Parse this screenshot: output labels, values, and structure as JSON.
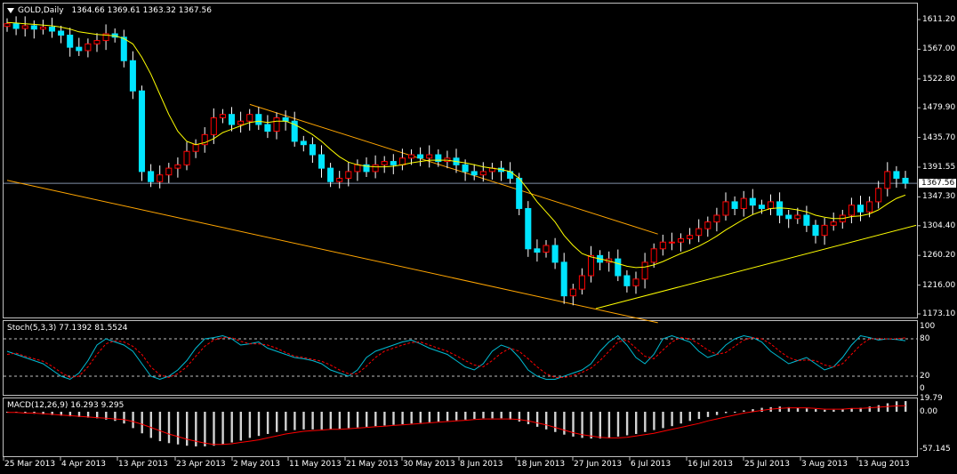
{
  "colors": {
    "background": "#000000",
    "frame": "#c0c0c0",
    "bull_candle": "#ff0000",
    "bear_candle": "#00e5ff",
    "ma_line": "#ffff00",
    "channel_line": "#ffa500",
    "trend_line": "#ffff00",
    "price_line": "#7f8fa6",
    "stoch_main": "#00bcd4",
    "stoch_signal": "#ff0000",
    "macd_hist": "#d3d3d3",
    "macd_signal": "#ff0000"
  },
  "main_panel": {
    "arrow_icon": "triangle-down-icon",
    "symbol": "GOLD,Daily",
    "ohlc": "1364.66 1369.61 1363.32 1367.56",
    "current_price": "1367.56"
  },
  "stoch_panel": {
    "title": "Stoch(5,3,3) 77.1392 81.5524"
  },
  "macd_panel": {
    "title": "MACD(12,26,9) 16.293 9.295"
  },
  "chart_data": [
    {
      "type": "candlestick",
      "title": "GOLD,Daily",
      "ylim": [
        1150,
        1625
      ],
      "yticks": [
        "1611.20",
        "1567.00",
        "1522.80",
        "1479.90",
        "1435.70",
        "1391.55",
        "1347.30",
        "1304.40",
        "1260.20",
        "1216.00",
        "1173.10"
      ],
      "xticks": [
        "25 Mar 2013",
        "4 Apr 2013",
        "13 Apr 2013",
        "23 Apr 2013",
        "2 May 2013",
        "11 May 2013",
        "21 May 2013",
        "30 May 2013",
        "8 Jun 2013",
        "18 Jun 2013",
        "27 Jun 2013",
        "6 Jul 2013",
        "16 Jul 2013",
        "25 Jul 2013",
        "3 Aug 2013",
        "13 Aug 2013"
      ],
      "close": [
        1605,
        1598,
        1602,
        1597,
        1600,
        1594,
        1588,
        1570,
        1565,
        1575,
        1580,
        1590,
        1585,
        1550,
        1505,
        1385,
        1370,
        1380,
        1390,
        1395,
        1415,
        1425,
        1440,
        1465,
        1470,
        1455,
        1460,
        1470,
        1455,
        1445,
        1465,
        1460,
        1430,
        1425,
        1410,
        1390,
        1370,
        1375,
        1385,
        1395,
        1385,
        1395,
        1400,
        1395,
        1405,
        1410,
        1405,
        1410,
        1400,
        1405,
        1395,
        1385,
        1380,
        1385,
        1390,
        1385,
        1375,
        1330,
        1270,
        1265,
        1275,
        1250,
        1200,
        1210,
        1230,
        1260,
        1250,
        1255,
        1230,
        1215,
        1225,
        1250,
        1270,
        1280,
        1280,
        1285,
        1290,
        1300,
        1310,
        1320,
        1340,
        1330,
        1345,
        1335,
        1330,
        1340,
        1320,
        1315,
        1320,
        1305,
        1290,
        1305,
        1310,
        1320,
        1335,
        1325,
        1340,
        1360,
        1385,
        1375,
        1367.56
      ],
      "ma": [
        1607,
        1606,
        1605,
        1604,
        1603,
        1602,
        1600,
        1597,
        1593,
        1591,
        1589,
        1588,
        1587,
        1583,
        1575,
        1555,
        1530,
        1500,
        1470,
        1445,
        1430,
        1425,
        1428,
        1434,
        1443,
        1448,
        1453,
        1458,
        1460,
        1458,
        1460,
        1460,
        1455,
        1448,
        1440,
        1430,
        1418,
        1407,
        1399,
        1395,
        1393,
        1392,
        1392,
        1393,
        1395,
        1398,
        1400,
        1402,
        1402,
        1402,
        1400,
        1398,
        1395,
        1392,
        1390,
        1388,
        1385,
        1375,
        1358,
        1340,
        1325,
        1310,
        1290,
        1275,
        1263,
        1258,
        1255,
        1252,
        1248,
        1244,
        1242,
        1243,
        1246,
        1251,
        1257,
        1263,
        1268,
        1274,
        1281,
        1289,
        1298,
        1306,
        1314,
        1321,
        1326,
        1330,
        1331,
        1330,
        1328,
        1325,
        1320,
        1317,
        1315,
        1315,
        1318,
        1319,
        1322,
        1328,
        1337,
        1345,
        1350
      ],
      "channel_upper": [
        {
          "bar": 47,
          "price": 1485
        },
        {
          "bar": 126,
          "price": 1292
        }
      ],
      "channel_lower": [
        {
          "bar": 0,
          "price": 1372
        },
        {
          "bar": 126,
          "price": 1160
        }
      ],
      "trend_line": [
        {
          "bar": 114,
          "price": 1181
        },
        {
          "bar": 176,
          "price": 1305
        }
      ]
    },
    {
      "type": "line",
      "title": "Stoch(5,3,3) 77.1392 81.5524",
      "ylim": [
        0,
        100
      ],
      "levels": [
        20,
        80
      ],
      "yticks": [
        "100",
        "80",
        "20",
        "0"
      ],
      "series": [
        {
          "name": "main",
          "values": [
            60,
            55,
            50,
            45,
            40,
            30,
            20,
            15,
            25,
            45,
            70,
            80,
            75,
            70,
            60,
            40,
            20,
            15,
            20,
            30,
            45,
            65,
            80,
            82,
            85,
            80,
            70,
            72,
            75,
            65,
            60,
            55,
            50,
            48,
            45,
            40,
            30,
            25,
            20,
            30,
            50,
            60,
            65,
            70,
            75,
            78,
            72,
            65,
            60,
            55,
            45,
            35,
            30,
            40,
            60,
            70,
            65,
            50,
            30,
            20,
            15,
            15,
            20,
            25,
            30,
            40,
            60,
            75,
            85,
            70,
            50,
            40,
            55,
            80,
            85,
            80,
            75,
            60,
            50,
            55,
            70,
            80,
            85,
            82,
            75,
            60,
            50,
            40,
            45,
            50,
            40,
            30,
            35,
            50,
            70,
            85,
            82,
            78,
            80,
            79,
            77
          ]
        },
        {
          "name": "signal",
          "values": [
            55,
            57,
            52,
            48,
            44,
            36,
            26,
            18,
            20,
            35,
            55,
            72,
            77,
            75,
            68,
            55,
            35,
            22,
            18,
            24,
            35,
            52,
            68,
            78,
            82,
            82,
            76,
            72,
            72,
            70,
            65,
            58,
            52,
            50,
            47,
            44,
            38,
            30,
            24,
            24,
            36,
            50,
            60,
            65,
            70,
            74,
            75,
            70,
            65,
            60,
            53,
            45,
            38,
            35,
            45,
            57,
            65,
            60,
            48,
            35,
            24,
            18,
            18,
            21,
            26,
            33,
            45,
            60,
            75,
            78,
            65,
            52,
            48,
            62,
            75,
            82,
            80,
            72,
            62,
            55,
            58,
            68,
            78,
            82,
            80,
            72,
            60,
            50,
            45,
            46,
            45,
            38,
            35,
            40,
            55,
            70,
            80,
            80,
            80,
            80,
            81.5524
          ]
        }
      ]
    },
    {
      "type": "bar",
      "title": "MACD(12,26,9) 16.293 9.295",
      "ylim": [
        -60,
        22
      ],
      "yticks": [
        "19.79",
        "0.00",
        "-57.145"
      ],
      "histogram": [
        0,
        -1,
        -2,
        -3,
        -4,
        -5,
        -6,
        -7,
        -8,
        -9,
        -10,
        -12,
        -14,
        -18,
        -25,
        -33,
        -40,
        -45,
        -48,
        -50,
        -52,
        -53,
        -53,
        -52,
        -50,
        -47,
        -44,
        -40,
        -37,
        -34,
        -31,
        -29,
        -28,
        -27,
        -27,
        -27,
        -27,
        -26,
        -25,
        -24,
        -23,
        -22,
        -21,
        -20,
        -19,
        -18,
        -17,
        -16,
        -15,
        -14,
        -13,
        -12,
        -11,
        -10,
        -10,
        -10,
        -12,
        -15,
        -19,
        -23,
        -27,
        -31,
        -35,
        -38,
        -40,
        -41,
        -41,
        -40,
        -38,
        -36,
        -34,
        -31,
        -28,
        -25,
        -22,
        -18,
        -14,
        -11,
        -8,
        -5,
        -2,
        0,
        2,
        4,
        6,
        7,
        8,
        7,
        6,
        5,
        4,
        3,
        3,
        4,
        5,
        6,
        8,
        10,
        13,
        16,
        16.293
      ],
      "signal": [
        -1,
        -1,
        -2,
        -2,
        -3,
        -4,
        -5,
        -6,
        -7,
        -8,
        -9,
        -10,
        -11,
        -12,
        -15,
        -19,
        -24,
        -29,
        -34,
        -38,
        -42,
        -45,
        -48,
        -50,
        -50,
        -49,
        -47,
        -45,
        -43,
        -40,
        -37,
        -34,
        -32,
        -30,
        -29,
        -28,
        -27,
        -27,
        -26,
        -25,
        -24,
        -23,
        -22,
        -21,
        -20,
        -19,
        -18,
        -17,
        -16,
        -15,
        -14,
        -13,
        -12,
        -11,
        -11,
        -11,
        -11,
        -12,
        -14,
        -17,
        -20,
        -24,
        -28,
        -32,
        -35,
        -37,
        -39,
        -40,
        -40,
        -39,
        -37,
        -35,
        -33,
        -30,
        -27,
        -24,
        -21,
        -18,
        -14,
        -11,
        -8,
        -5,
        -2,
        0,
        2,
        4,
        5,
        6,
        6,
        6,
        5,
        4,
        4,
        4,
        5,
        5,
        6,
        7,
        8,
        9,
        9.295
      ]
    }
  ]
}
